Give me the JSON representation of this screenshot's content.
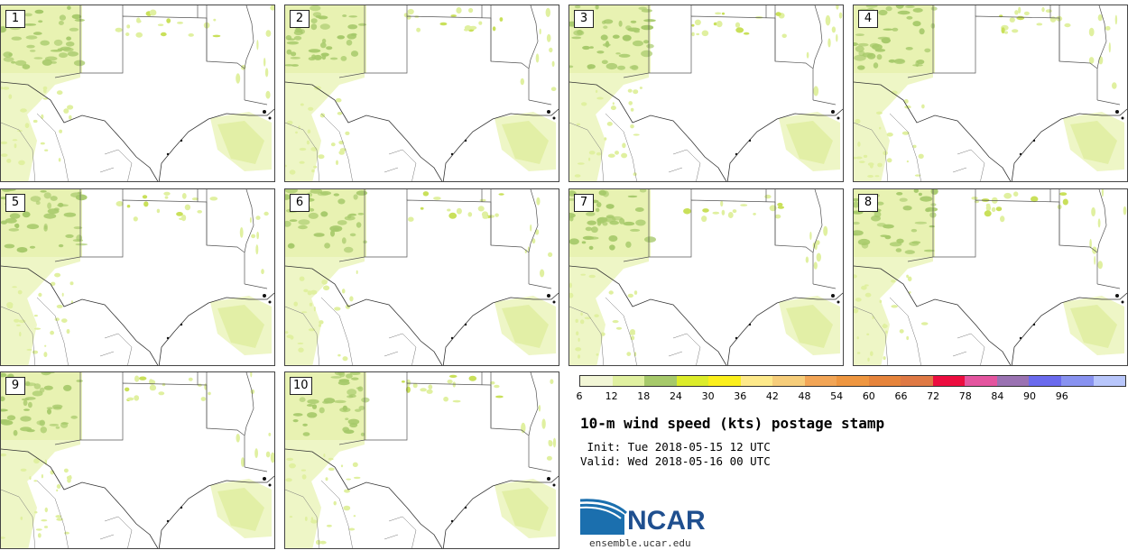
{
  "panels": [
    {
      "label": "1"
    },
    {
      "label": "2"
    },
    {
      "label": "3"
    },
    {
      "label": "4"
    },
    {
      "label": "5"
    },
    {
      "label": "6"
    },
    {
      "label": "7"
    },
    {
      "label": "8"
    },
    {
      "label": "9"
    },
    {
      "label": "10"
    }
  ],
  "colorbar": {
    "ticks": [
      "6",
      "12",
      "18",
      "24",
      "30",
      "36",
      "42",
      "48",
      "54",
      "60",
      "66",
      "72",
      "78",
      "84",
      "90",
      "96"
    ],
    "colors": [
      "#f2f6d6",
      "#e0f0a0",
      "#a6c96a",
      "#dcec2a",
      "#fbef1b",
      "#fde98a",
      "#f6cd7a",
      "#f2a556",
      "#ee9640",
      "#e6843b",
      "#df7944",
      "#ec0d3f",
      "#e4559f",
      "#9a72b2",
      "#6a6aed",
      "#8892f0",
      "#b8c6fb"
    ]
  },
  "title": "10-m wind speed (kts) postage stamp",
  "init": " Init: Tue 2018-05-15 12 UTC",
  "valid": "Valid: Wed 2018-05-16 00 UTC",
  "logo": {
    "text": "NCAR",
    "site": "ensemble.ucar.edu"
  }
}
